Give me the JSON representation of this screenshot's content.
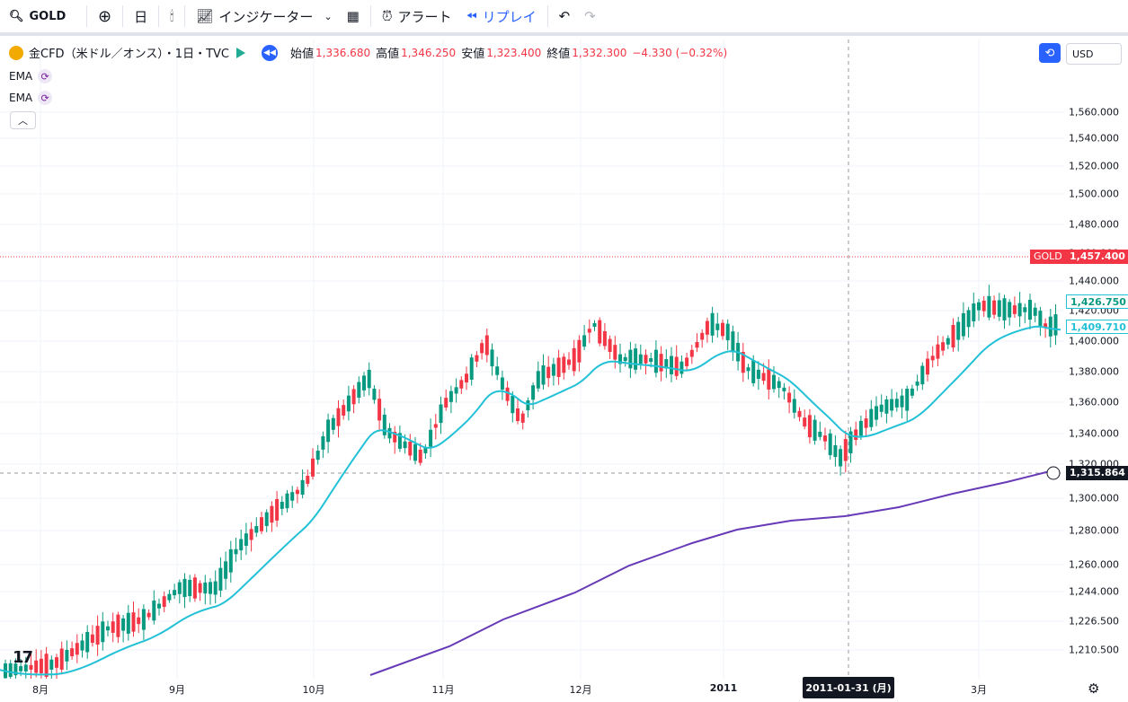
{
  "topbar": {
    "symbol": "GOLD",
    "interval": "日",
    "indicators": "インジケーター",
    "alert": "アラート",
    "replay": "リプレイ"
  },
  "legend": {
    "title": "金CFD（米ドル／オンス）・1日・TVC",
    "open_label": "始値",
    "open": "1,336.680",
    "high_label": "高値",
    "high": "1,346.250",
    "low_label": "安値",
    "low": "1,323.400",
    "close_label": "終値",
    "close": "1,332.300",
    "change": "−4.330 (−0.32%)"
  },
  "indicators": [
    {
      "label": "EMA"
    },
    {
      "label": "EMA"
    }
  ],
  "currency": "USD",
  "colors": {
    "up": "#089981",
    "down": "#f23645",
    "ema_fast": "#22c1d6",
    "ema_slow": "#673ab7",
    "accent": "#2962ff"
  },
  "yaxis": {
    "ticks": [
      "1,560.000",
      "1,540.000",
      "1,520.000",
      "1,500.000",
      "1,480.000",
      "1,460.000",
      "1,440.000",
      "1,420.000",
      "1,400.000",
      "1,380.000",
      "1,360.000",
      "1,340.000",
      "1,320.000",
      "1,300.000",
      "1,280.000",
      "1,260.000",
      "1,244.000",
      "1,226.500",
      "1,210.500"
    ],
    "gold_label": "GOLD",
    "gold_price": "1,457.400",
    "ema_fast_value": "1,409.710",
    "ema_mid_value": "1,426.750",
    "crosshair_price": "1,315.864"
  },
  "xaxis": {
    "labels": [
      "8月",
      "9月",
      "10月",
      "11月",
      "12月",
      "2011",
      "3月"
    ],
    "crosshair_date": "2011-01-31 (月)"
  },
  "chart_data": {
    "type": "candlestick",
    "price_range": [
      1200,
      1580
    ],
    "gold_line": 1457.4,
    "crosshair": {
      "date": "2011-01-31",
      "price": 1315.864
    }
  }
}
